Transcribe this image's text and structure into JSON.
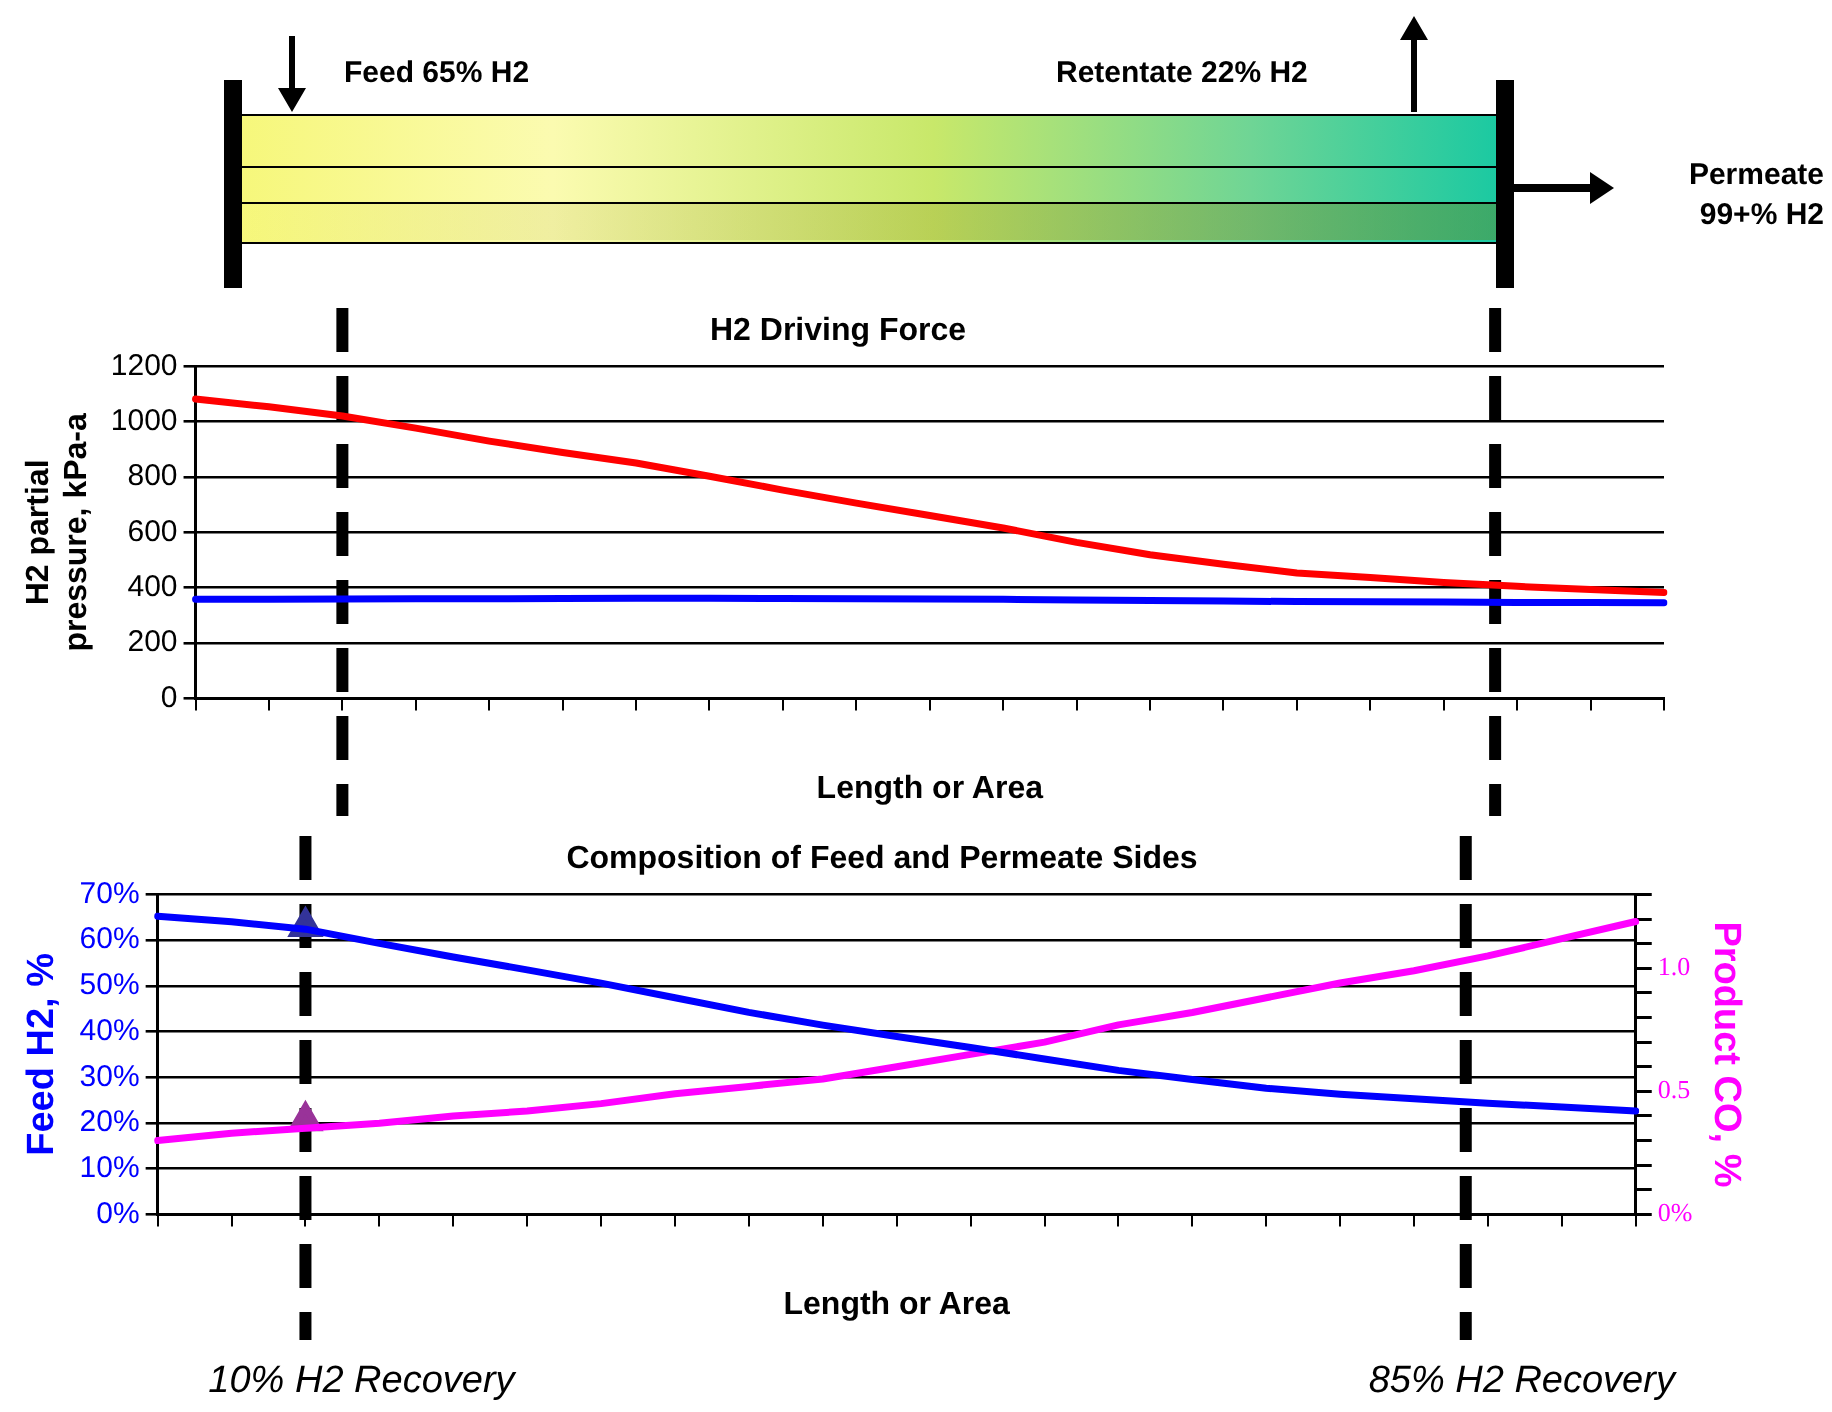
{
  "chart_data": [
    {
      "type": "other",
      "annotations": [
        "Feed 65% H2",
        "Retentate 22% H2",
        "Permeate 99+% H2"
      ]
    },
    {
      "type": "line",
      "title": "H2 Driving Force",
      "xlabel": "Length or Area",
      "ylabel": "H2 partial pressure, kPa-a",
      "categories": [
        null,
        null,
        null,
        null,
        null,
        null,
        null,
        null,
        null,
        null,
        null,
        null,
        null,
        null,
        null,
        null,
        null,
        null,
        null,
        null,
        null
      ],
      "ylim": [
        0,
        1200
      ],
      "yticks": [
        0,
        200,
        400,
        600,
        800,
        1000,
        1200
      ],
      "grid": "y",
      "legend": false,
      "tick_labels": "y",
      "marker": "none",
      "line_style": "solid",
      "series": [
        {
          "color": "#ff0000",
          "values": [
            1082,
            1054,
            1021,
            977,
            930,
            889,
            851,
            803,
            753,
            706,
            661,
            616,
            564,
            519,
            485,
            453,
            437,
            419,
            405,
            394,
            383
          ]
        },
        {
          "color": "#0000ff",
          "values": [
            358,
            358,
            359,
            360,
            360,
            361,
            362,
            362,
            361,
            360,
            359,
            358,
            356,
            354,
            352,
            350,
            349,
            348,
            347,
            347,
            346
          ]
        }
      ]
    },
    {
      "type": "line",
      "title": "Composition of Feed and Permeate Sides",
      "xlabel": "Length or Area",
      "ylabel": "Feed H2, %",
      "y2label": "Product CO, %",
      "categories": [
        null,
        null,
        null,
        null,
        null,
        null,
        null,
        null,
        null,
        null,
        null,
        null,
        null,
        null,
        null,
        null,
        null,
        null,
        null,
        null,
        null
      ],
      "ylim": [
        0,
        70
      ],
      "yticks": [
        {
          "value": 0,
          "label": "0%"
        },
        {
          "value": 10,
          "label": "10%"
        },
        {
          "value": 20,
          "label": "20%"
        },
        {
          "value": 30,
          "label": "30%"
        },
        {
          "value": 40,
          "label": "40%"
        },
        {
          "value": 50,
          "label": "50%"
        },
        {
          "value": 60,
          "label": "60%"
        },
        {
          "value": 70,
          "label": "70%"
        }
      ],
      "y2lim": [
        0,
        1.3
      ],
      "y2ticks": [
        {
          "value": 0,
          "label": "0%"
        },
        {
          "value": 0.1,
          "label": null
        },
        {
          "value": 0.2,
          "label": null
        },
        {
          "value": 0.3,
          "label": null
        },
        {
          "value": 0.4,
          "label": null
        },
        {
          "value": 0.5,
          "label": "0.5"
        },
        {
          "value": 0.6,
          "label": null
        },
        {
          "value": 0.7,
          "label": null
        },
        {
          "value": 0.8,
          "label": null
        },
        {
          "value": 0.9,
          "label": null
        },
        {
          "value": 1.0,
          "label": "1.0"
        },
        {
          "value": 1.1,
          "label": null
        },
        {
          "value": 1.2,
          "label": null
        },
        {
          "value": 1.3,
          "label": null
        }
      ],
      "grid": "y",
      "legend": false,
      "tick_labels": "y",
      "marker": "none",
      "line_style": "solid",
      "series": [
        {
          "color": "#0000ff",
          "values": [
            65.2,
            64,
            62.4,
            59.3,
            56.3,
            53.5,
            50.6,
            47.4,
            44.2,
            41.4,
            38.9,
            36.5,
            34,
            31.5,
            29.5,
            27.6,
            26.3,
            25.3,
            24.3,
            23.5,
            22.6
          ]
        },
        {
          "color": "#ff00ff",
          "axis": "y2",
          "values": [
            0.3,
            0.33,
            0.35,
            0.37,
            0.4,
            0.42,
            0.45,
            0.49,
            0.52,
            0.55,
            0.6,
            0.65,
            0.7,
            0.77,
            0.82,
            0.88,
            0.94,
            0.99,
            1.05,
            1.12,
            1.19
          ]
        },
        {
          "type": "scatter",
          "marker": "triangle",
          "color": "#333399",
          "values": [
            null,
            null,
            63,
            null,
            null,
            null,
            null,
            null,
            null,
            null,
            null,
            null,
            null,
            null,
            null,
            null,
            null,
            null,
            null,
            null,
            null
          ]
        },
        {
          "type": "scatter",
          "marker": "triangle",
          "color": "#993399",
          "axis": "y2",
          "values": [
            null,
            null,
            0.38,
            null,
            null,
            null,
            null,
            null,
            null,
            null,
            null,
            null,
            null,
            null,
            null,
            null,
            null,
            null,
            null,
            null,
            null
          ]
        }
      ],
      "annotations": [
        "10% H2 Recovery",
        "85% H2 Recovery"
      ]
    }
  ]
}
